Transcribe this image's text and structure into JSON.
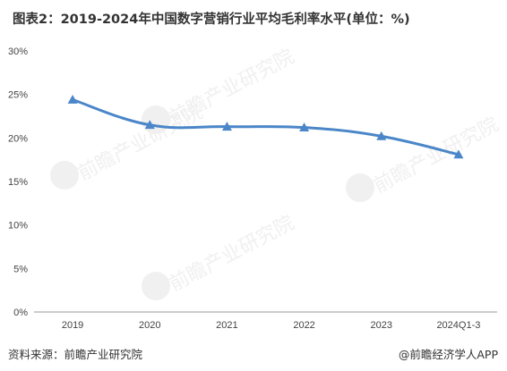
{
  "title": "图表2：2019-2024年中国数字营销行业平均毛利率水平(单位：%)",
  "footer": {
    "source": "资料来源：前瞻产业研究院",
    "credit": "@前瞻经济学人APP"
  },
  "watermark": "前瞻产业研究院",
  "colors": {
    "series": "#4a86c8",
    "axis": "#999999",
    "text": "#444444"
  },
  "chart_data": {
    "type": "line",
    "title": "图表2：2019-2024年中国数字营销行业平均毛利率水平(单位：%)",
    "categories": [
      "2019",
      "2020",
      "2021",
      "2022",
      "2023",
      "2024Q1-3"
    ],
    "series": [
      {
        "values": [
          24.4,
          21.5,
          21.3,
          21.2,
          20.2,
          18.1
        ],
        "marker": "triangle",
        "smooth": true
      }
    ],
    "yticks": [
      "0%",
      "5%",
      "10%",
      "15%",
      "20%",
      "25%",
      "30%"
    ],
    "ylim": [
      0,
      30
    ],
    "grid": false,
    "legend": "none"
  }
}
